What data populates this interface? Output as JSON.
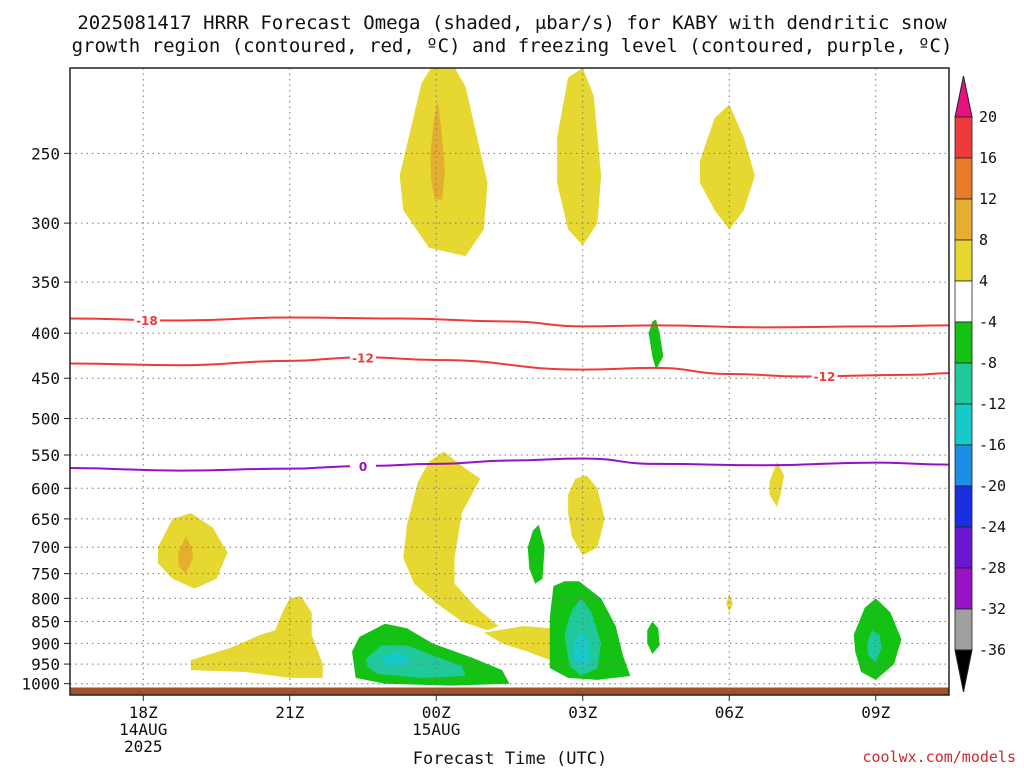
{
  "chart_data": {
    "type": "heatmap",
    "title_line1": "2025081417 HRRR Forecast Omega (shaded, μbar/s) for KABY with dendritic snow",
    "title_line2": "growth region (contoured, red, ºC) and freezing level (contoured, purple, ºC)",
    "xlabel": "Forecast Time (UTC)",
    "credit": "coolwx.com/models",
    "x_range_hours": [
      -1.0,
      11.0
    ],
    "y_range_hpa": [
      1030,
      200
    ],
    "y_scale": "log-pressure",
    "grid": true,
    "x_ticks": [
      {
        "hour": 0,
        "label": "18Z",
        "sub1": "14AUG",
        "sub2": "2025"
      },
      {
        "hour": 2,
        "label": "21Z",
        "sub1": "",
        "sub2": ""
      },
      {
        "hour": 4,
        "label": "00Z",
        "sub1": "15AUG",
        "sub2": ""
      },
      {
        "hour": 6,
        "label": "03Z",
        "sub1": "",
        "sub2": ""
      },
      {
        "hour": 8,
        "label": "06Z",
        "sub1": "",
        "sub2": ""
      },
      {
        "hour": 10,
        "label": "09Z",
        "sub1": "",
        "sub2": ""
      }
    ],
    "y_ticks": [
      250,
      300,
      350,
      400,
      450,
      500,
      550,
      600,
      650,
      700,
      750,
      800,
      850,
      900,
      950,
      1000
    ],
    "colorbar": {
      "labels": [
        "20",
        "16",
        "12",
        "8",
        "4",
        "-4",
        "-8",
        "-12",
        "-16",
        "-20",
        "-24",
        "-28",
        "-32",
        "-36"
      ],
      "colors": [
        "#e8117f",
        "#ee3a3a",
        "#ea7b29",
        "#e6ae2e",
        "#e6d830",
        "#ffffff",
        "#13c213",
        "#1fc99a",
        "#17c9c9",
        "#1c8ee6",
        "#1a2fe0",
        "#6a18cf",
        "#9713c4",
        "#a0a0a0",
        "#000000"
      ]
    },
    "contours": [
      {
        "name": "dendritic -18",
        "label": "-18",
        "color": "#ee3a3a",
        "points": [
          [
            -1.0,
            385
          ],
          [
            0.5,
            387
          ],
          [
            2.0,
            384
          ],
          [
            3.5,
            385
          ],
          [
            5.0,
            388
          ],
          [
            6.0,
            393
          ],
          [
            7.0,
            392
          ],
          [
            8.5,
            394
          ],
          [
            10.0,
            393
          ],
          [
            11.0,
            392
          ]
        ]
      },
      {
        "name": "dendritic -12",
        "label": "-12",
        "color": "#ee3a3a",
        "points": [
          [
            -1.0,
            433
          ],
          [
            0.5,
            435
          ],
          [
            2.0,
            430
          ],
          [
            3.0,
            426
          ],
          [
            4.0,
            429
          ],
          [
            6.0,
            440
          ],
          [
            7.0,
            438
          ],
          [
            8.0,
            445
          ],
          [
            9.0,
            448
          ],
          [
            10.5,
            446
          ],
          [
            11.0,
            444
          ]
        ]
      },
      {
        "name": "freezing level 0",
        "label": "0",
        "color": "#9610c4",
        "points": [
          [
            -1.0,
            569
          ],
          [
            0.5,
            573
          ],
          [
            2.0,
            570
          ],
          [
            3.0,
            566
          ],
          [
            4.0,
            563
          ],
          [
            5.0,
            558
          ],
          [
            6.0,
            555
          ],
          [
            7.0,
            563
          ],
          [
            8.5,
            565
          ],
          [
            10.0,
            561
          ],
          [
            11.0,
            564
          ]
        ]
      }
    ],
    "omega_regions": [
      {
        "name": "upper-00Z",
        "value": 4,
        "points": [
          [
            3.5,
            265
          ],
          [
            3.8,
            208
          ],
          [
            4.1,
            190
          ],
          [
            4.4,
            210
          ],
          [
            4.7,
            270
          ],
          [
            4.65,
            305
          ],
          [
            4.4,
            327
          ],
          [
            3.9,
            320
          ],
          [
            3.55,
            290
          ]
        ]
      },
      {
        "name": "upper-00Z-core",
        "value": 8,
        "points": [
          [
            3.92,
            250
          ],
          [
            3.97,
            228
          ],
          [
            4.02,
            218
          ],
          [
            4.07,
            235
          ],
          [
            4.12,
            262
          ],
          [
            4.08,
            282
          ],
          [
            3.98,
            282
          ],
          [
            3.93,
            268
          ]
        ]
      },
      {
        "name": "upper-03Z",
        "value": 4,
        "points": [
          [
            5.65,
            240
          ],
          [
            5.8,
            205
          ],
          [
            6.0,
            200
          ],
          [
            6.15,
            215
          ],
          [
            6.25,
            265
          ],
          [
            6.2,
            300
          ],
          [
            6.0,
            318
          ],
          [
            5.8,
            305
          ],
          [
            5.65,
            270
          ]
        ]
      },
      {
        "name": "upper-06Z",
        "value": 4,
        "points": [
          [
            7.6,
            255
          ],
          [
            7.8,
            228
          ],
          [
            8.0,
            220
          ],
          [
            8.2,
            240
          ],
          [
            8.35,
            265
          ],
          [
            8.2,
            290
          ],
          [
            8.0,
            305
          ],
          [
            7.8,
            290
          ],
          [
            7.6,
            270
          ]
        ]
      },
      {
        "name": "green-0500Z-mid",
        "value": -4,
        "points": [
          [
            6.9,
            400
          ],
          [
            6.95,
            388
          ],
          [
            7.0,
            386
          ],
          [
            7.05,
            400
          ],
          [
            7.1,
            425
          ],
          [
            7.0,
            440
          ],
          [
            6.95,
            425
          ]
        ]
      },
      {
        "name": "mid-00Z",
        "value": 4,
        "points": [
          [
            3.6,
            660
          ],
          [
            3.75,
            590
          ],
          [
            3.9,
            560
          ],
          [
            4.1,
            545
          ],
          [
            4.4,
            570
          ],
          [
            4.6,
            585
          ],
          [
            4.35,
            640
          ],
          [
            4.25,
            720
          ],
          [
            4.25,
            770
          ],
          [
            4.55,
            820
          ],
          [
            4.85,
            860
          ],
          [
            4.7,
            870
          ],
          [
            4.35,
            850
          ],
          [
            4.0,
            810
          ],
          [
            3.7,
            770
          ],
          [
            3.55,
            720
          ]
        ]
      },
      {
        "name": "mid-03Z",
        "value": 4,
        "points": [
          [
            5.8,
            610
          ],
          [
            5.9,
            585
          ],
          [
            6.05,
            580
          ],
          [
            6.2,
            600
          ],
          [
            6.3,
            650
          ],
          [
            6.2,
            700
          ],
          [
            6.0,
            715
          ],
          [
            5.85,
            680
          ],
          [
            5.8,
            640
          ]
        ]
      },
      {
        "name": "left-19Z",
        "value": 4,
        "points": [
          [
            0.2,
            700
          ],
          [
            0.4,
            650
          ],
          [
            0.65,
            640
          ],
          [
            0.95,
            665
          ],
          [
            1.15,
            710
          ],
          [
            1.0,
            760
          ],
          [
            0.7,
            780
          ],
          [
            0.4,
            760
          ],
          [
            0.2,
            730
          ]
        ]
      },
      {
        "name": "left-19Z-core",
        "value": 8,
        "points": [
          [
            0.48,
            710
          ],
          [
            0.58,
            680
          ],
          [
            0.66,
            700
          ],
          [
            0.68,
            720
          ],
          [
            0.58,
            750
          ],
          [
            0.48,
            735
          ]
        ]
      },
      {
        "name": "low-21Z",
        "value": 4,
        "points": [
          [
            0.65,
            940
          ],
          [
            1.2,
            910
          ],
          [
            1.6,
            880
          ],
          [
            1.8,
            870
          ],
          [
            1.9,
            830
          ],
          [
            2.0,
            800
          ],
          [
            2.15,
            795
          ],
          [
            2.3,
            830
          ],
          [
            2.3,
            880
          ],
          [
            2.45,
            950
          ],
          [
            2.45,
            985
          ],
          [
            2.0,
            985
          ],
          [
            1.4,
            970
          ],
          [
            0.65,
            965
          ]
        ]
      },
      {
        "name": "low-0130Z",
        "value": 4,
        "points": [
          [
            4.65,
            875
          ],
          [
            5.2,
            860
          ],
          [
            5.55,
            865
          ],
          [
            5.55,
            940
          ],
          [
            5.25,
            920
          ],
          [
            4.9,
            900
          ]
        ]
      },
      {
        "name": "green-0230Z",
        "value": -4,
        "points": [
          [
            5.25,
            700
          ],
          [
            5.32,
            670
          ],
          [
            5.4,
            660
          ],
          [
            5.48,
            700
          ],
          [
            5.45,
            760
          ],
          [
            5.35,
            770
          ],
          [
            5.27,
            740
          ]
        ]
      },
      {
        "name": "green-2330Z",
        "value": -4,
        "points": [
          [
            2.85,
            920
          ],
          [
            2.95,
            885
          ],
          [
            3.3,
            855
          ],
          [
            3.6,
            865
          ],
          [
            3.95,
            900
          ],
          [
            4.5,
            935
          ],
          [
            4.9,
            965
          ],
          [
            5.0,
            1000
          ],
          [
            4.2,
            1005
          ],
          [
            3.3,
            1000
          ],
          [
            2.9,
            985
          ]
        ]
      },
      {
        "name": "teal-2330Z",
        "value": -8,
        "points": [
          [
            3.05,
            935
          ],
          [
            3.25,
            905
          ],
          [
            3.6,
            905
          ],
          [
            3.9,
            925
          ],
          [
            4.35,
            955
          ],
          [
            4.4,
            980
          ],
          [
            3.8,
            985
          ],
          [
            3.2,
            975
          ],
          [
            3.05,
            955
          ]
        ]
      },
      {
        "name": "cyan-2330Z",
        "value": -12,
        "points": [
          [
            3.25,
            935
          ],
          [
            3.45,
            920
          ],
          [
            3.65,
            935
          ],
          [
            3.6,
            955
          ],
          [
            3.3,
            955
          ]
        ]
      },
      {
        "name": "green-03Z-low",
        "value": -4,
        "points": [
          [
            5.55,
            840
          ],
          [
            5.6,
            775
          ],
          [
            5.75,
            765
          ],
          [
            5.95,
            765
          ],
          [
            6.25,
            800
          ],
          [
            6.45,
            860
          ],
          [
            6.55,
            930
          ],
          [
            6.65,
            980
          ],
          [
            6.2,
            990
          ],
          [
            5.8,
            985
          ],
          [
            5.55,
            960
          ]
        ]
      },
      {
        "name": "teal-03Z-low",
        "value": -8,
        "points": [
          [
            5.75,
            880
          ],
          [
            5.85,
            825
          ],
          [
            5.98,
            800
          ],
          [
            6.12,
            830
          ],
          [
            6.25,
            900
          ],
          [
            6.2,
            960
          ],
          [
            5.98,
            980
          ],
          [
            5.82,
            955
          ]
        ]
      },
      {
        "name": "cyan-03Z-low",
        "value": -12,
        "points": [
          [
            5.88,
            900
          ],
          [
            5.98,
            870
          ],
          [
            6.1,
            900
          ],
          [
            6.08,
            950
          ],
          [
            5.98,
            960
          ],
          [
            5.88,
            935
          ]
        ]
      },
      {
        "name": "green-0500Z-low",
        "value": -4,
        "points": [
          [
            6.88,
            870
          ],
          [
            6.95,
            850
          ],
          [
            7.03,
            865
          ],
          [
            7.05,
            905
          ],
          [
            6.95,
            925
          ],
          [
            6.88,
            900
          ]
        ]
      },
      {
        "name": "yellow-07Z",
        "value": 4,
        "points": [
          [
            8.55,
            590
          ],
          [
            8.65,
            560
          ],
          [
            8.75,
            580
          ],
          [
            8.7,
            610
          ],
          [
            8.65,
            630
          ],
          [
            8.55,
            610
          ]
        ]
      },
      {
        "name": "yellow-06Z-low",
        "value": 4,
        "points": [
          [
            7.96,
            810
          ],
          [
            8.0,
            790
          ],
          [
            8.05,
            810
          ],
          [
            8.0,
            830
          ]
        ]
      },
      {
        "name": "green-09Z",
        "value": -4,
        "points": [
          [
            9.7,
            880
          ],
          [
            9.85,
            820
          ],
          [
            10.0,
            800
          ],
          [
            10.2,
            830
          ],
          [
            10.35,
            890
          ],
          [
            10.25,
            950
          ],
          [
            10.0,
            990
          ],
          [
            9.8,
            970
          ],
          [
            9.72,
            920
          ]
        ]
      },
      {
        "name": "teal-09Z",
        "value": -8,
        "points": [
          [
            9.88,
            900
          ],
          [
            9.95,
            870
          ],
          [
            10.05,
            880
          ],
          [
            10.08,
            910
          ],
          [
            10.0,
            945
          ],
          [
            9.9,
            930
          ]
        ]
      }
    ],
    "surface_band_hpa": [
      1010,
      1030
    ]
  }
}
